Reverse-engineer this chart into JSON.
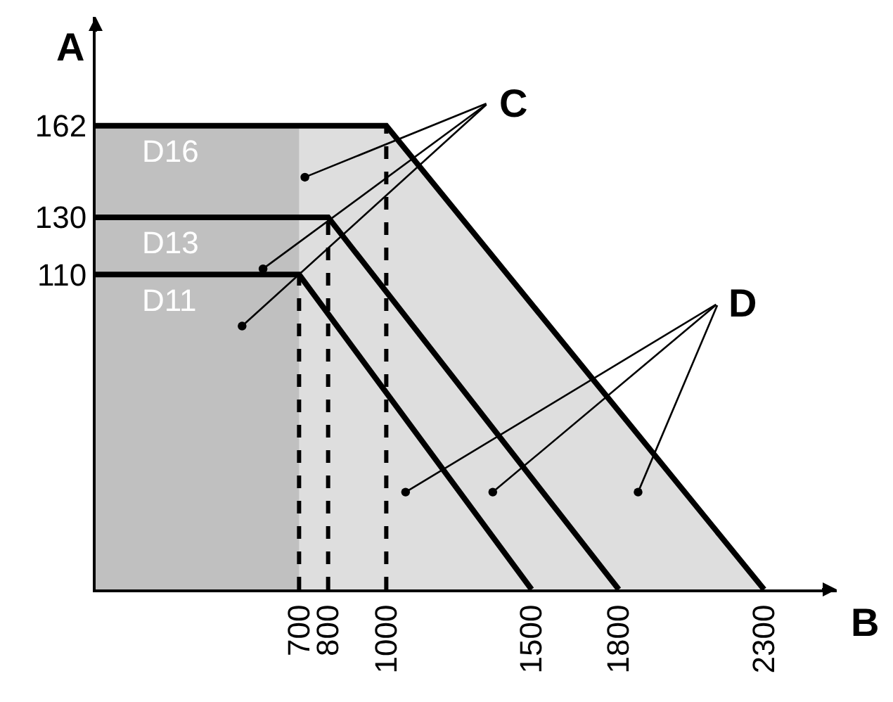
{
  "chart_data": {
    "type": "line",
    "xlabel": "B",
    "ylabel": "A",
    "xlim": [
      0,
      2550
    ],
    "ylim": [
      0,
      200
    ],
    "xticks": [
      700,
      800,
      1000,
      1500,
      1800,
      2300
    ],
    "yticks": [
      110,
      130,
      162
    ],
    "grid": false,
    "legend": false,
    "line_style": "solid",
    "marker": "none",
    "series": [
      {
        "name": "D16",
        "type": "area",
        "color": "#000000",
        "x": [
          0,
          1000,
          2300
        ],
        "values": [
          162,
          162,
          0
        ]
      },
      {
        "name": "D13",
        "type": "line",
        "color": "#000000",
        "x": [
          0,
          800,
          1800
        ],
        "values": [
          130,
          130,
          0
        ]
      },
      {
        "name": "D11",
        "type": "line",
        "color": "#000000",
        "x": [
          0,
          700,
          1500
        ],
        "values": [
          110,
          110,
          0
        ]
      }
    ],
    "bands": [
      {
        "axis": "x",
        "from": 0,
        "to": 700,
        "color": "#b4b4b4"
      }
    ],
    "ref_lines": [
      {
        "axis": "x",
        "value": 700,
        "line_style": "dashed",
        "color": "#000000"
      },
      {
        "axis": "x",
        "value": 800,
        "line_style": "dashed",
        "color": "#000000"
      },
      {
        "axis": "x",
        "value": 1000,
        "line_style": "dashed",
        "color": "#000000"
      }
    ],
    "annotations": [
      "C",
      "D"
    ]
  }
}
